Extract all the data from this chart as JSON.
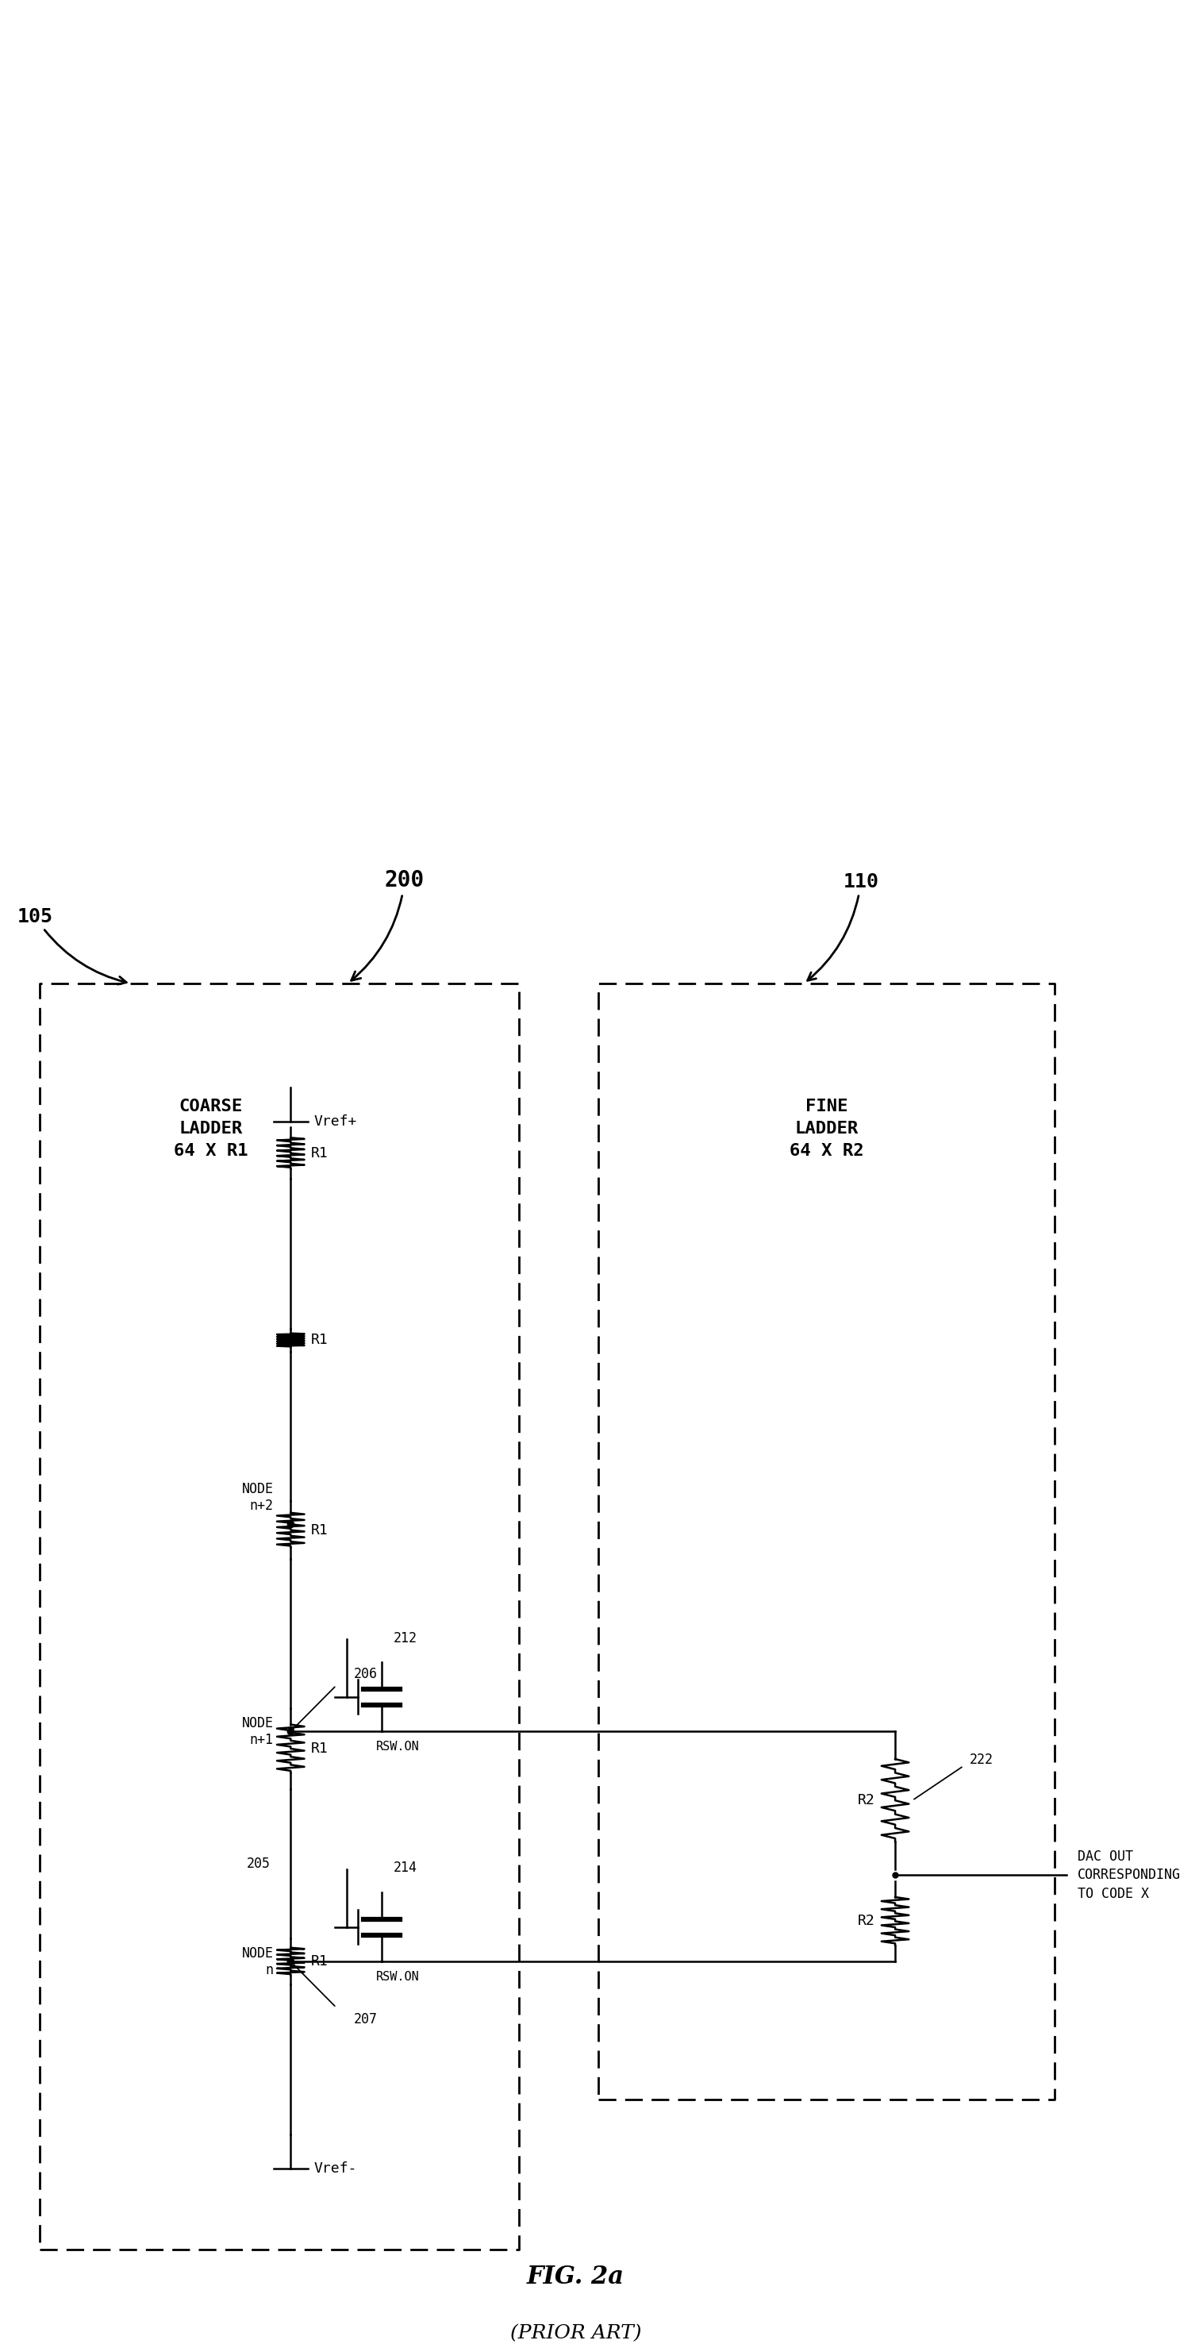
{
  "fig_width": 15.11,
  "fig_height": 29.53,
  "bg_color": "#ffffff",
  "line_color": "#000000",
  "title": "FIG. 2a",
  "subtitle": "(PRIOR ART)",
  "label_200": "200",
  "label_105": "105",
  "label_110": "110",
  "label_coarse": "COARSE\nLADDER\n64 X R1",
  "label_fine": "FINE\nLADDER\n64 X R2",
  "label_vref_plus": "Vref+",
  "label_vref_minus": "Vref-",
  "label_node_n2": "NODE\nn+2",
  "label_node_n1": "NODE\nn+1",
  "label_node_n": "NODE\nn",
  "label_206": "206",
  "label_207": "207",
  "label_212": "212",
  "label_214": "214",
  "label_222": "222",
  "label_rsw1": "RSW.ON",
  "label_rsw2": "RSW.ON",
  "label_r1": "R1",
  "label_r2": "R2",
  "label_205": "205",
  "label_dac": "DAC OUT\nCORRESPONDING\nTO CODE X"
}
